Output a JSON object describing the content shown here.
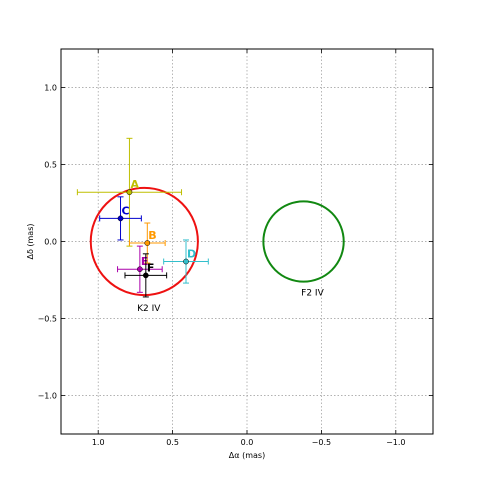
{
  "chart_data": {
    "type": "scatter",
    "title": "",
    "xlabel": "Δα (mas)",
    "ylabel": "Δδ (mas)",
    "xlim": [
      1.25,
      -1.25
    ],
    "ylim": [
      -1.25,
      1.25
    ],
    "grid": true,
    "xticks": [
      1.0,
      0.5,
      0.0,
      -0.5,
      -1.0
    ],
    "xtick_labels": [
      "1.0",
      "0.5",
      "0.0",
      "−0.5",
      "−1.0"
    ],
    "yticks": [
      1.0,
      0.5,
      0.0,
      -0.5,
      -1.0
    ],
    "ytick_labels": [
      "1.0",
      "0.5",
      "0.0",
      "−0.5",
      "−1.0"
    ],
    "points": [
      {
        "label": "A",
        "x": 0.79,
        "y": 0.32,
        "xerr": 0.35,
        "yerr": 0.35,
        "color": "#bfbf00"
      },
      {
        "label": "B",
        "x": 0.67,
        "y": -0.01,
        "xerr": 0.12,
        "yerr": 0.13,
        "color": "#ff9900"
      },
      {
        "label": "C",
        "x": 0.85,
        "y": 0.15,
        "xerr": 0.14,
        "yerr": 0.14,
        "color": "#0000cc"
      },
      {
        "label": "D",
        "x": 0.41,
        "y": -0.13,
        "xerr": 0.15,
        "yerr": 0.14,
        "color": "#33bfcc"
      },
      {
        "label": "E",
        "x": 0.72,
        "y": -0.18,
        "xerr": 0.15,
        "yerr": 0.15,
        "color": "#aa00aa"
      },
      {
        "label": "F",
        "x": 0.68,
        "y": -0.22,
        "xerr": 0.14,
        "yerr": 0.14,
        "color": "#000000"
      }
    ],
    "circles": [
      {
        "label": "K2 IV",
        "cx": 0.69,
        "cy": 0.0,
        "r": 0.36,
        "color": "#ee1111"
      },
      {
        "label": "F2 IV",
        "cx": -0.38,
        "cy": 0.0,
        "r": 0.27,
        "color": "#118811"
      }
    ],
    "annotations": [
      {
        "text": "K2 IV",
        "x": 0.66,
        "y": -0.45
      },
      {
        "text": "F2 IV",
        "x": -0.44,
        "y": -0.35
      }
    ]
  }
}
